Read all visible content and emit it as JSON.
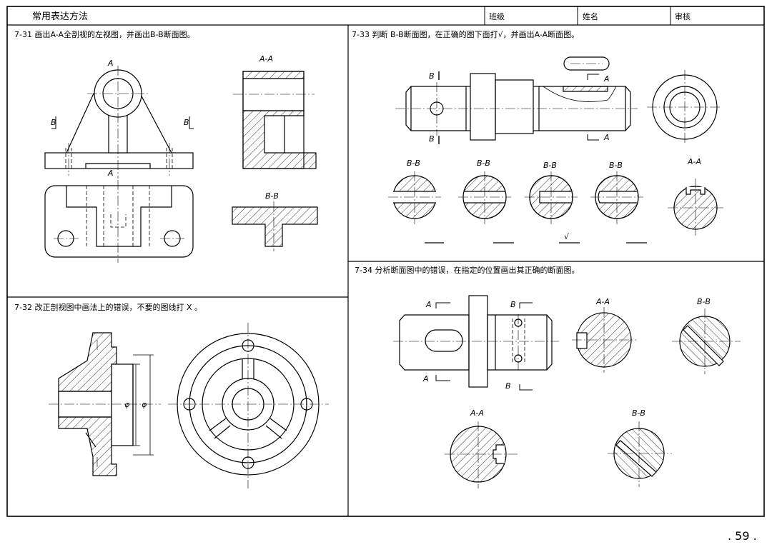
{
  "header": {
    "title": "常用表达方法",
    "class_label": "班级",
    "name_label": "姓名",
    "review_label": "审核"
  },
  "tasks": {
    "t731": "7-31  画出A-A全剖视的左视图，并画出B-B断面图。",
    "t732": "7-32  改正剖视图中画法上的错误，不要的图线打 X 。",
    "t733": "7-33  判断 B-B断面图，在正确的图下面打√，并画出A-A断面图。",
    "t734": "7-34  分析断面图中的错误，在指定的位置画出其正确的断面图。"
  },
  "labels": {
    "A": "A",
    "B": "B",
    "AA": "A-A",
    "BB": "B-B",
    "phi": "φ",
    "check": "√"
  },
  "page_number": ". 59 ."
}
